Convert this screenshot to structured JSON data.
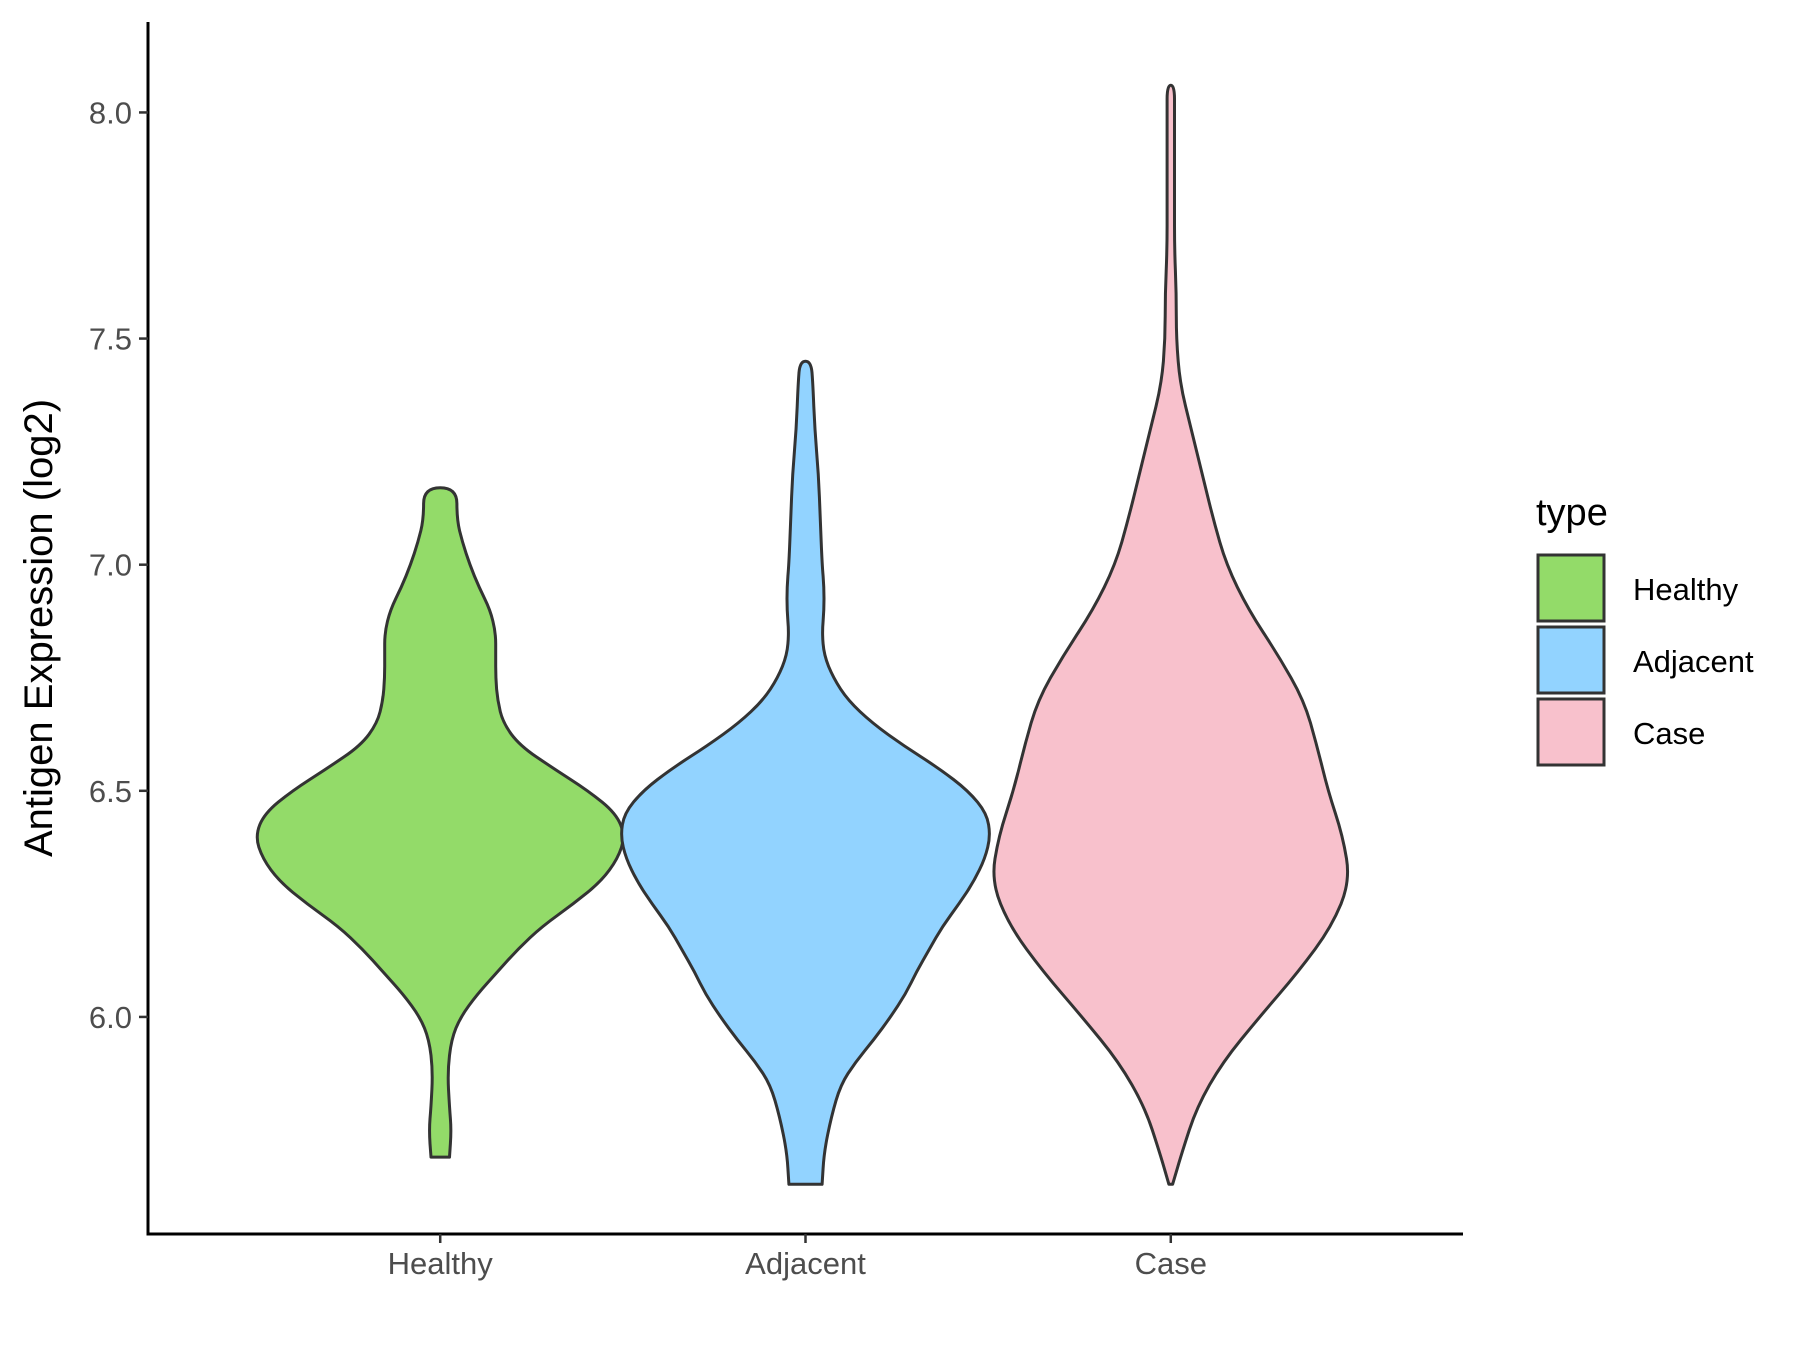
{
  "chart_data": {
    "type": "violin",
    "title": "",
    "xlabel": "",
    "ylabel": "Antigen Expression (log2)",
    "categories": [
      "Healthy",
      "Adjacent",
      "Case"
    ],
    "ylim": [
      5.52,
      8.2
    ],
    "yticks": [
      6.0,
      6.5,
      7.0,
      7.5,
      8.0
    ],
    "ytick_labels": [
      "6.0",
      "6.5",
      "7.0",
      "7.5",
      "8.0"
    ],
    "grid": false,
    "legend": {
      "title": "type",
      "position": "right",
      "entries": [
        "Healthy",
        "Adjacent",
        "Case"
      ]
    },
    "series": [
      {
        "name": "Healthy",
        "color": "#93DB69",
        "min": 5.69,
        "max": 7.17,
        "profile": [
          [
            5.69,
            0.05
          ],
          [
            5.75,
            0.06
          ],
          [
            5.8,
            0.05
          ],
          [
            5.88,
            0.04
          ],
          [
            5.95,
            0.06
          ],
          [
            6.0,
            0.11
          ],
          [
            6.05,
            0.2
          ],
          [
            6.1,
            0.31
          ],
          [
            6.15,
            0.42
          ],
          [
            6.2,
            0.55
          ],
          [
            6.25,
            0.72
          ],
          [
            6.3,
            0.87
          ],
          [
            6.35,
            0.96
          ],
          [
            6.4,
            1.0
          ],
          [
            6.45,
            0.95
          ],
          [
            6.5,
            0.8
          ],
          [
            6.55,
            0.61
          ],
          [
            6.6,
            0.43
          ],
          [
            6.65,
            0.34
          ],
          [
            6.7,
            0.31
          ],
          [
            6.75,
            0.3
          ],
          [
            6.8,
            0.3
          ],
          [
            6.85,
            0.3
          ],
          [
            6.9,
            0.27
          ],
          [
            6.95,
            0.21
          ],
          [
            7.0,
            0.16
          ],
          [
            7.05,
            0.12
          ],
          [
            7.1,
            0.09
          ],
          [
            7.17,
            0.09
          ]
        ]
      },
      {
        "name": "Adjacent",
        "color": "#92D3FF",
        "min": 5.63,
        "max": 7.45,
        "profile": [
          [
            5.63,
            0.09
          ],
          [
            5.7,
            0.1
          ],
          [
            5.78,
            0.14
          ],
          [
            5.85,
            0.19
          ],
          [
            5.9,
            0.27
          ],
          [
            5.95,
            0.37
          ],
          [
            6.0,
            0.46
          ],
          [
            6.05,
            0.54
          ],
          [
            6.1,
            0.6
          ],
          [
            6.15,
            0.67
          ],
          [
            6.2,
            0.74
          ],
          [
            6.25,
            0.83
          ],
          [
            6.3,
            0.91
          ],
          [
            6.35,
            0.97
          ],
          [
            6.4,
            1.0
          ],
          [
            6.45,
            0.98
          ],
          [
            6.5,
            0.88
          ],
          [
            6.55,
            0.72
          ],
          [
            6.6,
            0.53
          ],
          [
            6.65,
            0.36
          ],
          [
            6.7,
            0.23
          ],
          [
            6.75,
            0.15
          ],
          [
            6.8,
            0.1
          ],
          [
            6.85,
            0.09
          ],
          [
            6.9,
            0.1
          ],
          [
            6.95,
            0.1
          ],
          [
            7.0,
            0.09
          ],
          [
            7.1,
            0.08
          ],
          [
            7.2,
            0.07
          ],
          [
            7.3,
            0.05
          ],
          [
            7.4,
            0.04
          ],
          [
            7.45,
            0.03
          ]
        ]
      },
      {
        "name": "Case",
        "color": "#F8C1CC",
        "min": 5.63,
        "max": 8.06,
        "profile": [
          [
            5.63,
            0.01
          ],
          [
            5.7,
            0.06
          ],
          [
            5.8,
            0.14
          ],
          [
            5.9,
            0.28
          ],
          [
            6.0,
            0.48
          ],
          [
            6.1,
            0.69
          ],
          [
            6.2,
            0.87
          ],
          [
            6.3,
            0.97
          ],
          [
            6.4,
            0.93
          ],
          [
            6.5,
            0.85
          ],
          [
            6.6,
            0.79
          ],
          [
            6.7,
            0.72
          ],
          [
            6.8,
            0.58
          ],
          [
            6.9,
            0.42
          ],
          [
            7.0,
            0.3
          ],
          [
            7.1,
            0.23
          ],
          [
            7.2,
            0.17
          ],
          [
            7.3,
            0.11
          ],
          [
            7.4,
            0.05
          ],
          [
            7.5,
            0.03
          ],
          [
            7.6,
            0.03
          ],
          [
            7.7,
            0.02
          ],
          [
            7.8,
            0.02
          ],
          [
            7.9,
            0.02
          ],
          [
            8.0,
            0.02
          ],
          [
            8.06,
            0.02
          ]
        ]
      }
    ]
  }
}
